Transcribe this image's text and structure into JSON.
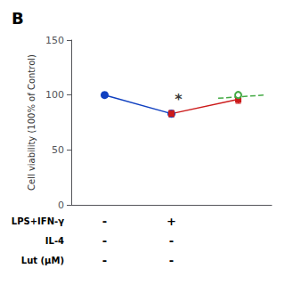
{
  "chart_data": {
    "type": "line",
    "title": "B",
    "ylabel": "Cell viability (100% of Control)",
    "xlim": [
      0.5,
      3.5
    ],
    "ylim": [
      0,
      150
    ],
    "yticks": [
      0,
      50,
      100,
      150
    ],
    "grid": false,
    "tick_labels": "y",
    "series": [
      {
        "color": "#1040c0",
        "marker": "circle",
        "line_style": "solid",
        "x": [
          1,
          2
        ],
        "values": [
          100,
          83
        ]
      },
      {
        "color": "#cc1a1a",
        "marker": "square",
        "line_style": "solid",
        "x": [
          2,
          3
        ],
        "values": [
          83,
          96
        ],
        "errors": [
          3.0,
          3.5
        ]
      },
      {
        "color": "#44aa44",
        "marker": "open_circle",
        "line_style": "dashed",
        "x": [
          3
        ],
        "values": [
          100
        ]
      },
      {
        "color": "#44aa44",
        "marker": "none",
        "line_style": "dashed",
        "x": [
          2.7,
          3.4
        ],
        "values": [
          97,
          100
        ]
      }
    ],
    "annotations": [
      {
        "text": "*",
        "x": 2.05,
        "y": 90
      }
    ],
    "table": {
      "x": [
        1,
        2
      ],
      "rows": [
        {
          "label": "LPS+IFN-γ",
          "cells": [
            "-",
            "+"
          ]
        },
        {
          "label": "IL-4",
          "cells": [
            "-",
            "-"
          ]
        },
        {
          "label": "Lut (μM)",
          "cells": [
            "-",
            "-"
          ]
        }
      ]
    }
  }
}
